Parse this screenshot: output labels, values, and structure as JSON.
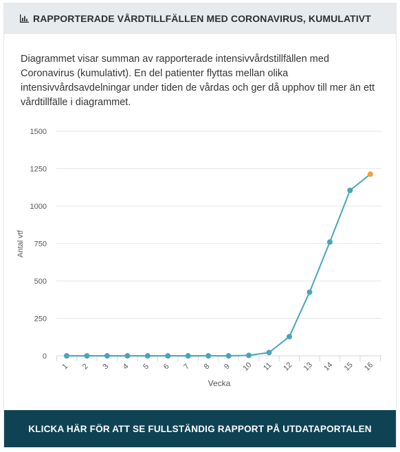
{
  "header": {
    "title": "RAPPORTERADE VÅRDTILLFÄLLEN MED CORONAVIRUS, KUMULATIVT",
    "icon": "bar-chart-icon"
  },
  "description": "Diagrammet visar summan av rapporterade intensivvårdstillfällen med Coronavirus (kumulativt). En del patienter flyttas mellan olika intensivvårdsavdelningar under tiden de vårdas och ger då upphov till mer än ett vårdtillfälle i diagrammet.",
  "chart_data": {
    "type": "line",
    "xlabel": "Vecka",
    "ylabel": "Antal vtf",
    "ylim": [
      0,
      1500
    ],
    "yticks": [
      0,
      250,
      500,
      750,
      1000,
      1250,
      1500
    ],
    "categories": [
      "1",
      "2",
      "3",
      "4",
      "5",
      "6",
      "7",
      "8",
      "9",
      "10",
      "11",
      "12",
      "13",
      "14",
      "15",
      "16"
    ],
    "series": [
      {
        "values": [
          0,
          0,
          0,
          0,
          0,
          0,
          0,
          0,
          0,
          3,
          22,
          128,
          425,
          760,
          1105,
          1213
        ],
        "color": "#4aa3ba",
        "last_point_color": "#f5a037"
      }
    ],
    "grid": true,
    "legend": "none"
  },
  "footer": {
    "button_label": "KLICKA HÄR FÖR ATT SE FULLSTÄNDIG RAPPORT PÅ UTDATAPORTALEN"
  }
}
